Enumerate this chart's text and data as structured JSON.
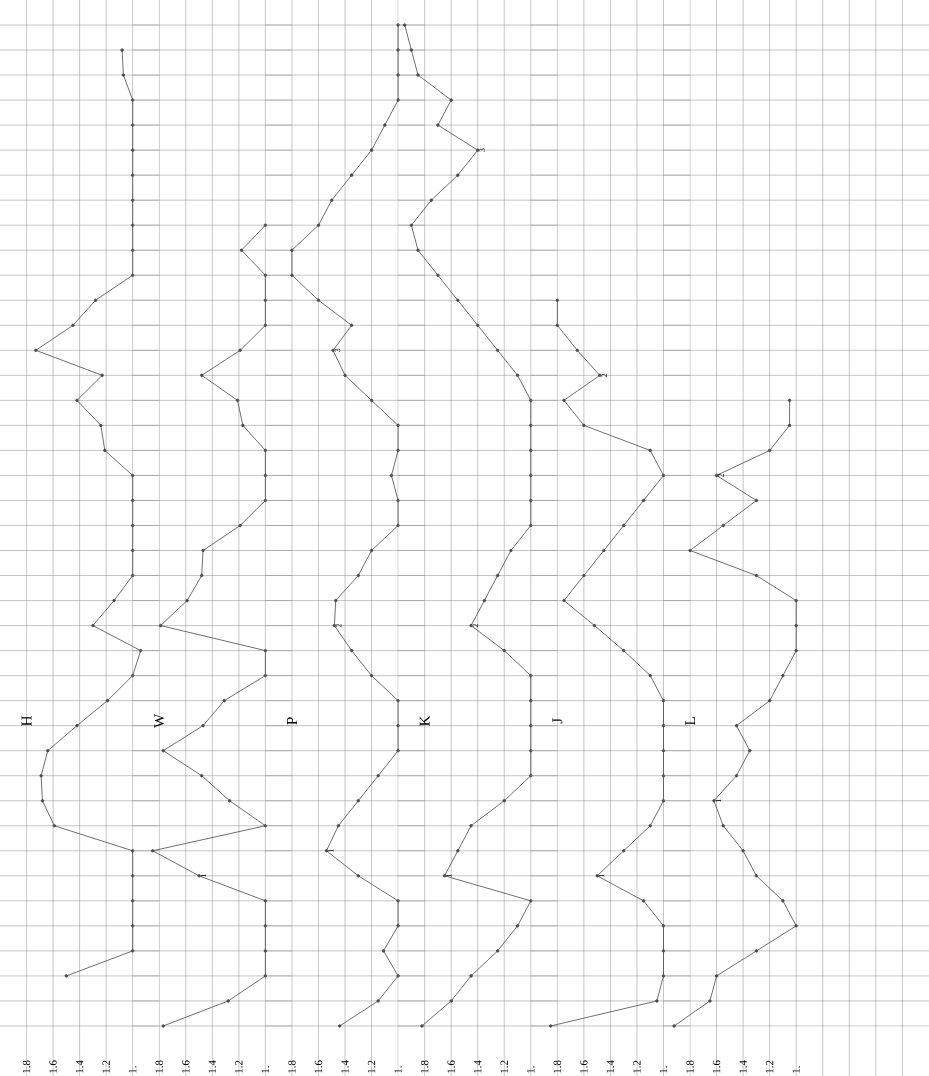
{
  "chart_data": [
    {
      "type": "line",
      "orientation": "horizontal",
      "categories": [
        null,
        null,
        null,
        null,
        null,
        null,
        null,
        null,
        null,
        null,
        null,
        null,
        null,
        null,
        null,
        null,
        null,
        null,
        null,
        null,
        null,
        null,
        null,
        null,
        null,
        null,
        null,
        null,
        null,
        null,
        null,
        null,
        null,
        null,
        null,
        null,
        null,
        null,
        null,
        null,
        null
      ],
      "xlim": [
        2.0,
        0.8
      ],
      "xticks": [
        1.8,
        1.6,
        1.4,
        1.2,
        {
          "value": 1.0,
          "label": "1."
        }
      ],
      "grid": true,
      "marker": "circle",
      "tick_labels": "x",
      "series": [
        {
          "name": "H",
          "color": "#4a4a4a",
          "values": [
            null,
            1.08,
            1.07,
            1.0,
            1.0,
            1.0,
            1.0,
            1.0,
            1.0,
            1.0,
            1.0,
            1.28,
            1.45,
            1.73,
            1.23,
            1.42,
            1.24,
            1.21,
            1.0,
            1.0,
            1.0,
            1.0,
            1.0,
            1.14,
            1.3,
            0.94,
            1.0,
            1.19,
            1.42,
            1.64,
            1.69,
            1.68,
            1.59,
            1.0,
            1.0,
            1.0,
            1.0,
            1.0,
            1.5,
            null,
            null
          ]
        }
      ]
    },
    {
      "type": "line",
      "orientation": "horizontal",
      "categories": [
        null,
        null,
        null,
        null,
        null,
        null,
        null,
        null,
        null,
        null,
        null,
        null,
        null,
        null,
        null,
        null,
        null,
        null,
        null,
        null,
        null,
        null,
        null,
        null,
        null,
        null,
        null,
        null,
        null,
        null,
        null,
        null,
        null,
        null,
        null,
        null,
        null,
        null,
        null,
        null,
        null
      ],
      "xlim": [
        2.0,
        0.8
      ],
      "xticks": [
        1.8,
        1.6,
        1.4,
        1.2,
        {
          "value": 1.0,
          "label": "1."
        }
      ],
      "grid": true,
      "marker": "circle",
      "tick_labels": "x",
      "series": [
        {
          "name": "W",
          "color": "#4a4a4a",
          "values": [
            null,
            null,
            null,
            null,
            null,
            null,
            null,
            null,
            1.0,
            1.18,
            1.0,
            1.0,
            1.0,
            1.19,
            1.48,
            1.21,
            1.17,
            1.0,
            1.0,
            1.0,
            1.19,
            1.47,
            1.48,
            1.59,
            1.79,
            1.0,
            1.0,
            1.31,
            1.47,
            1.77,
            1.48,
            1.27,
            1.0,
            1.85,
            1.5,
            1.0,
            1.0,
            1.0,
            1.0,
            1.28,
            1.77
          ]
        }
      ],
      "annotations": [
        {
          "text": "1",
          "x": 1.5
        }
      ]
    },
    {
      "type": "line",
      "orientation": "horizontal",
      "categories": [
        null,
        null,
        null,
        null,
        null,
        null,
        null,
        null,
        null,
        null,
        null,
        null,
        null,
        null,
        null,
        null,
        null,
        null,
        null,
        null,
        null,
        null,
        null,
        null,
        null,
        null,
        null,
        null,
        null,
        null,
        null,
        null,
        null,
        null,
        null,
        null,
        null,
        null,
        null,
        null,
        null
      ],
      "xlim": [
        2.0,
        0.8
      ],
      "xticks": [
        1.8,
        1.6,
        1.4,
        1.2,
        {
          "value": 1.0,
          "label": "1."
        }
      ],
      "grid": true,
      "marker": "circle",
      "tick_labels": "x",
      "series": [
        {
          "name": "P",
          "color": "#4a4a4a",
          "values": [
            1.0,
            1.0,
            1.0,
            1.0,
            1.1,
            1.2,
            1.35,
            1.5,
            1.6,
            1.8,
            1.8,
            1.6,
            1.35,
            1.49,
            1.4,
            1.2,
            1.0,
            1.0,
            1.05,
            1.0,
            1.0,
            1.2,
            1.3,
            1.47,
            1.48,
            1.35,
            1.2,
            1.0,
            1.0,
            1.0,
            1.15,
            1.3,
            1.45,
            1.54,
            1.3,
            1.0,
            1.0,
            1.11,
            1.0,
            1.15,
            1.44
          ]
        }
      ],
      "annotations": [
        {
          "text": "3",
          "x": 1.49
        },
        {
          "text": "2",
          "x": 1.48
        },
        {
          "text": "1",
          "x": 1.54
        }
      ]
    },
    {
      "type": "line",
      "orientation": "horizontal",
      "categories": [
        null,
        null,
        null,
        null,
        null,
        null,
        null,
        null,
        null,
        null,
        null,
        null,
        null,
        null,
        null,
        null,
        null,
        null,
        null,
        null,
        null,
        null,
        null,
        null,
        null,
        null,
        null,
        null,
        null,
        null,
        null,
        null,
        null,
        null,
        null,
        null,
        null,
        null,
        null,
        null,
        null
      ],
      "xlim": [
        2.0,
        0.8
      ],
      "xticks": [
        1.8,
        1.6,
        1.4,
        1.2,
        {
          "value": 1.0,
          "label": "1."
        }
      ],
      "grid": true,
      "marker": "circle",
      "tick_labels": "x",
      "series": [
        {
          "name": "K",
          "color": "#4a4a4a",
          "values": [
            1.95,
            1.9,
            1.85,
            1.6,
            1.7,
            1.4,
            1.55,
            1.75,
            1.9,
            1.85,
            1.7,
            1.55,
            1.4,
            1.25,
            1.1,
            1.0,
            1.0,
            1.0,
            1.0,
            1.0,
            1.0,
            1.15,
            1.25,
            1.35,
            1.45,
            1.2,
            1.0,
            1.0,
            1.0,
            1.0,
            1.0,
            1.2,
            1.45,
            1.55,
            1.65,
            1.0,
            1.1,
            1.25,
            1.45,
            1.6,
            1.82
          ]
        }
      ],
      "annotations": [
        {
          "text": "3",
          "x": 1.4
        },
        {
          "text": "2",
          "x": 1.45
        },
        {
          "text": "1",
          "x": 1.65
        }
      ]
    },
    {
      "type": "line",
      "orientation": "horizontal",
      "categories": [
        null,
        null,
        null,
        null,
        null,
        null,
        null,
        null,
        null,
        null,
        null,
        null,
        null,
        null,
        null,
        null,
        null,
        null,
        null,
        null,
        null,
        null,
        null,
        null,
        null,
        null,
        null,
        null,
        null,
        null,
        null,
        null,
        null,
        null,
        null,
        null,
        null,
        null,
        null,
        null,
        null
      ],
      "xlim": [
        2.0,
        0.8
      ],
      "xticks": [
        1.8,
        1.6,
        1.4,
        1.2,
        {
          "value": 1.0,
          "label": "1."
        }
      ],
      "grid": true,
      "marker": "circle",
      "tick_labels": "x",
      "series": [
        {
          "name": "J",
          "color": "#4a4a4a",
          "values": [
            null,
            null,
            null,
            null,
            null,
            null,
            null,
            null,
            null,
            null,
            null,
            1.8,
            1.8,
            1.65,
            1.48,
            1.75,
            1.6,
            1.1,
            1.0,
            1.15,
            1.3,
            1.45,
            1.6,
            1.75,
            1.52,
            1.3,
            1.1,
            1.0,
            1.0,
            1.0,
            1.0,
            1.0,
            1.1,
            1.3,
            1.5,
            1.15,
            1.0,
            1.0,
            1.0,
            1.05,
            1.85
          ]
        }
      ],
      "annotations": [
        {
          "text": "2",
          "x": 1.48
        },
        {
          "text": "1",
          "x": 1.5
        }
      ]
    },
    {
      "type": "line",
      "orientation": "horizontal",
      "categories": [
        null,
        null,
        null,
        null,
        null,
        null,
        null,
        null,
        null,
        null,
        null,
        null,
        null,
        null,
        null,
        null,
        null,
        null,
        null,
        null,
        null,
        null,
        null,
        null,
        null,
        null,
        null,
        null,
        null,
        null,
        null,
        null,
        null,
        null,
        null,
        null,
        null,
        null,
        null,
        null,
        null
      ],
      "xlim": [
        2.0,
        0.0
      ],
      "xticks": [
        1.8,
        1.6,
        1.4,
        1.2,
        {
          "value": 1.0,
          "label": "1."
        },
        {
          "value": 0.8,
          "label": null
        },
        {
          "value": 0.6,
          "label": null
        },
        {
          "value": 0.4,
          "label": null
        },
        {
          "value": 0.2,
          "label": null
        }
      ],
      "grid": true,
      "marker": "circle",
      "tick_labels": "x",
      "series": [
        {
          "name": "L",
          "color": "#4a4a4a",
          "values": [
            null,
            null,
            null,
            null,
            null,
            null,
            null,
            null,
            null,
            null,
            null,
            null,
            null,
            null,
            null,
            1.05,
            1.05,
            1.2,
            1.6,
            1.3,
            1.55,
            1.8,
            1.3,
            1.0,
            1.0,
            1.0,
            1.1,
            1.2,
            1.45,
            1.35,
            1.45,
            1.62,
            1.55,
            1.4,
            1.3,
            1.1,
            1.0,
            1.3,
            1.6,
            1.65,
            1.92
          ]
        }
      ],
      "annotations": [
        {
          "text": "2",
          "x": 1.6
        },
        {
          "text": "1",
          "x": 1.62
        }
      ]
    }
  ]
}
